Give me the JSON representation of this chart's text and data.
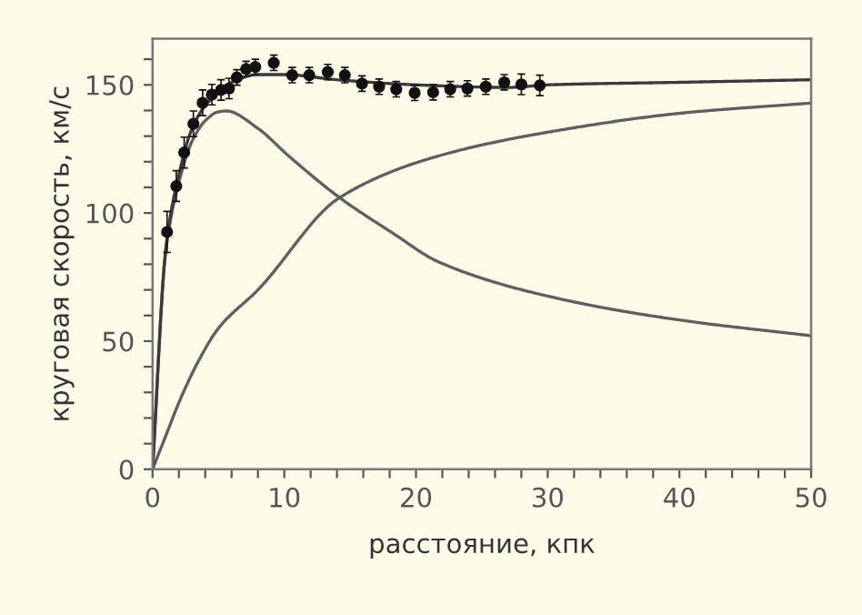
{
  "chart_data": {
    "type": "line",
    "xlabel": "расстояние, кпк",
    "ylabel": "круговая скорость, км/с",
    "xlim": [
      0,
      50
    ],
    "ylim": [
      0,
      168
    ],
    "xticks": [
      0,
      {
        "value": 2,
        "label": null
      },
      {
        "value": 4,
        "label": null
      },
      {
        "value": 6,
        "label": null
      },
      {
        "value": 8,
        "label": null
      },
      10,
      {
        "value": 12,
        "label": null
      },
      {
        "value": 14,
        "label": null
      },
      {
        "value": 16,
        "label": null
      },
      {
        "value": 18,
        "label": null
      },
      20,
      {
        "value": 22,
        "label": null
      },
      {
        "value": 24,
        "label": null
      },
      {
        "value": 26,
        "label": null
      },
      {
        "value": 28,
        "label": null
      },
      30,
      {
        "value": 32,
        "label": null
      },
      {
        "value": 34,
        "label": null
      },
      {
        "value": 36,
        "label": null
      },
      {
        "value": 38,
        "label": null
      },
      40,
      {
        "value": 42,
        "label": null
      },
      {
        "value": 44,
        "label": null
      },
      {
        "value": 46,
        "label": null
      },
      {
        "value": 48,
        "label": null
      },
      50
    ],
    "yticks": [
      0,
      {
        "value": 10,
        "label": null
      },
      {
        "value": 20,
        "label": null
      },
      {
        "value": 30,
        "label": null
      },
      {
        "value": 40,
        "label": null
      },
      50,
      {
        "value": 60,
        "label": null
      },
      {
        "value": 70,
        "label": null
      },
      {
        "value": 80,
        "label": null
      },
      {
        "value": 90,
        "label": null
      },
      100,
      {
        "value": 110,
        "label": null
      },
      {
        "value": 120,
        "label": null
      },
      {
        "value": 130,
        "label": null
      },
      {
        "value": 140,
        "label": null
      },
      150,
      {
        "value": 160,
        "label": null
      }
    ],
    "grid": false,
    "legend": false,
    "series": [
      {
        "color": "#5f5f5f",
        "x": [
          0,
          1,
          2,
          3,
          4,
          5,
          5.6,
          8,
          10.3,
          14.2,
          18.1,
          21.8,
          31,
          40.2,
          50
        ],
        "values": [
          0,
          85,
          112,
          128,
          136,
          139.5,
          139.8,
          133,
          122.4,
          106,
          92.6,
          80.7,
          66.4,
          58.1,
          52.1
        ]
      },
      {
        "color": "#5f5f5f",
        "x": [
          0,
          1,
          2,
          3.4,
          5,
          8,
          14.2,
          21.8,
          31,
          40.2,
          50
        ],
        "values": [
          0,
          13,
          26,
          41.4,
          55,
          70,
          106,
          122.4,
          132.4,
          139,
          142.9
        ]
      },
      {
        "color": "#3a3a3a",
        "x": [
          0,
          1,
          2,
          3,
          4,
          5,
          6,
          8,
          10,
          14,
          20,
          27.1,
          30,
          40,
          50
        ],
        "values": [
          0,
          86,
          115,
          133,
          142,
          147,
          151,
          154,
          154,
          152,
          150,
          149,
          150,
          151,
          152
        ]
      },
      {
        "type": "scatter",
        "color": "#111111",
        "marker": "circle",
        "x": [
          1.1,
          1.8,
          2.4,
          3.1,
          3.8,
          4.5,
          5.2,
          5.8,
          6.4,
          7.1,
          7.8,
          9.2,
          10.6,
          11.9,
          13.3,
          14.6,
          15.9,
          17.2,
          18.5,
          19.9,
          21.3,
          22.6,
          23.9,
          25.3,
          26.7,
          28.0,
          29.4
        ],
        "values": [
          92.6,
          110.5,
          123.6,
          134.8,
          143,
          146.2,
          148,
          148.6,
          152.9,
          156.2,
          157,
          158.6,
          153.8,
          153.8,
          155,
          153.8,
          150.5,
          149.3,
          148.3,
          146.9,
          147.1,
          148.3,
          148.6,
          149.3,
          151,
          150.2,
          149.8
        ],
        "errors": [
          8,
          6,
          6,
          5,
          5,
          4,
          4,
          4,
          3,
          3,
          3,
          3,
          3,
          3,
          3,
          3,
          3,
          3,
          3,
          3,
          3,
          3,
          3,
          3,
          3,
          4,
          4
        ]
      }
    ]
  }
}
